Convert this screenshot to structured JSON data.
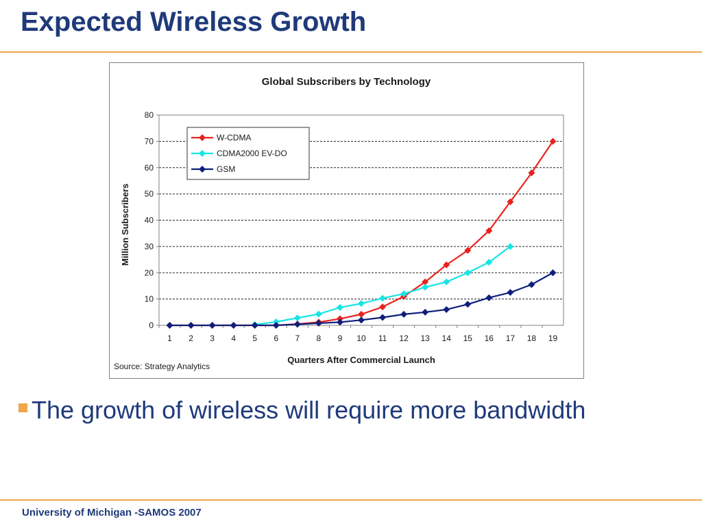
{
  "slide": {
    "title": "Expected Wireless Growth",
    "bullet": "The growth of wireless will require more bandwidth",
    "footer": "University of Michigan -SAMOS 2007",
    "colors": {
      "title": "#1f3a7a",
      "accent": "#f0a64a"
    }
  },
  "chart_data": {
    "type": "line",
    "title": "Global Subscribers by Technology",
    "xlabel": "Quarters After Commercial Launch",
    "ylabel": "Million Subscribers",
    "source": "Source: Strategy Analytics",
    "x": [
      1,
      2,
      3,
      4,
      5,
      6,
      7,
      8,
      9,
      10,
      11,
      12,
      13,
      14,
      15,
      16,
      17,
      18,
      19
    ],
    "ylim": [
      0,
      80
    ],
    "yticks": [
      0,
      10,
      20,
      30,
      40,
      50,
      60,
      70,
      80
    ],
    "grid": "horizontal dashed",
    "legend_position": "top-left",
    "series": [
      {
        "name": "W-CDMA",
        "color": "#e8231f",
        "values": [
          0,
          0,
          0,
          0,
          0,
          0,
          0.5,
          1.2,
          2.5,
          4.2,
          7,
          11,
          16.5,
          23,
          28.5,
          36,
          47,
          58,
          70
        ]
      },
      {
        "name": "CDMA2000 EV-DO",
        "color": "#17e5e5",
        "values": [
          null,
          null,
          null,
          null,
          0.3,
          1.3,
          2.8,
          4.3,
          6.8,
          8.3,
          10.3,
          12,
          14.5,
          16.5,
          20,
          24,
          30,
          null,
          null
        ]
      },
      {
        "name": "GSM",
        "color": "#0f1f7a",
        "values": [
          0,
          0,
          0,
          0,
          0,
          0,
          0.4,
          0.8,
          1.2,
          2,
          3,
          4.2,
          5,
          6,
          8,
          10.5,
          12.5,
          15.5,
          20
        ]
      }
    ]
  }
}
